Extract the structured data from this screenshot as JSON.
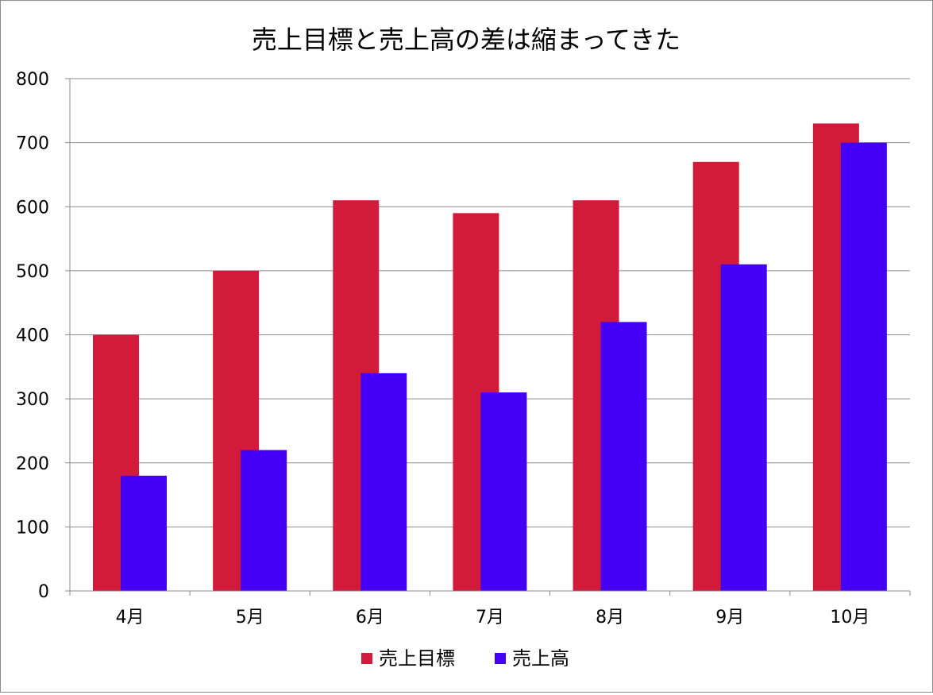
{
  "chart_data": {
    "type": "bar",
    "title": "売上目標と売上高の差は縮まってきた",
    "categories": [
      "4月",
      "5月",
      "6月",
      "7月",
      "8月",
      "9月",
      "10月"
    ],
    "series": [
      {
        "name": "売上目標",
        "color": "#d21a3b",
        "values": [
          400,
          500,
          610,
          590,
          610,
          670,
          730
        ]
      },
      {
        "name": "売上高",
        "color": "#4400f5",
        "values": [
          180,
          220,
          340,
          310,
          420,
          510,
          700
        ]
      }
    ],
    "ylim": [
      0,
      800
    ],
    "yticks": [
      0,
      100,
      200,
      300,
      400,
      500,
      600,
      700,
      800
    ],
    "xlabel": "",
    "ylabel": "",
    "grid": true,
    "legend_position": "bottom"
  }
}
